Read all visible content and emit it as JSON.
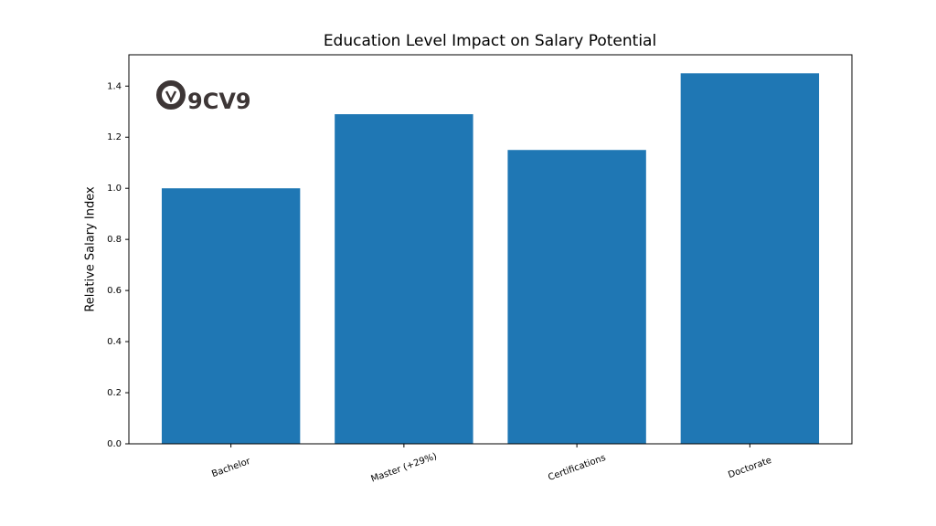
{
  "chart_data": {
    "type": "bar",
    "title": "Education Level Impact on Salary Potential",
    "ylabel": "Relative Salary Index",
    "logo": "9CV9",
    "categories": [
      "Bachelor",
      "Master (+29%)",
      "Certifications",
      "Doctorate"
    ],
    "values": [
      1.0,
      1.29,
      1.15,
      1.45
    ],
    "color": "#1f77b4",
    "ylim": [
      0,
      1.5225
    ],
    "yticks": [
      {
        "value": 0,
        "label": "0.0"
      },
      0.2,
      0.4,
      0.6,
      0.8,
      {
        "value": 1,
        "label": "1.0"
      },
      1.2,
      1.4
    ],
    "grid": false
  }
}
